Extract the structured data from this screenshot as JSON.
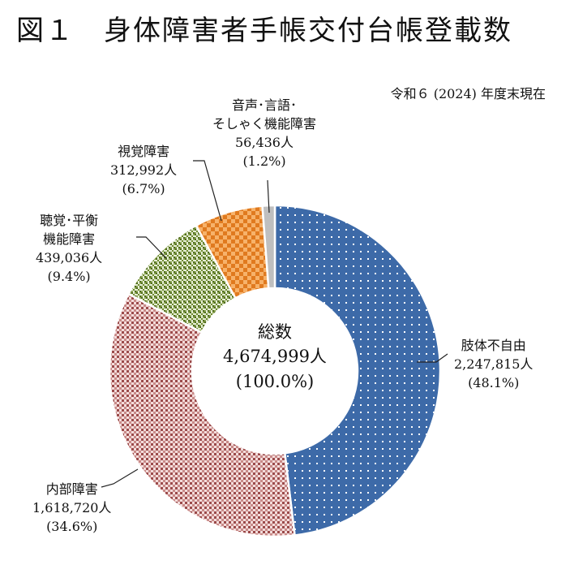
{
  "header": {
    "figure_number": "図１",
    "title": "身体障害者手帳交付台帳登載数",
    "subtitle": "令和６ (2024) 年度末現在"
  },
  "center": {
    "label": "総数",
    "total": "4,674,999人",
    "percent": "(100.0%)"
  },
  "colors": {
    "limb": "#3d6aa8",
    "internal": "#e8b9b7",
    "internal_pattern": "#8a3a3a",
    "hearing": "#6e8b2e",
    "visual": "#f08b2c",
    "speech": "#bfbfbf"
  },
  "labels": {
    "limb": {
      "name": "肢体不自由",
      "count": "2,247,815人",
      "pct": "(48.1%)"
    },
    "internal": {
      "name": "内部障害",
      "count": "1,618,720人",
      "pct": "(34.6%)"
    },
    "hearing": {
      "name1": "聴覚･平衡",
      "name2": "機能障害",
      "count": "439,036人",
      "pct": "(9.4%)"
    },
    "visual": {
      "name": "視覚障害",
      "count": "312,992人",
      "pct": "(6.7%)"
    },
    "speech": {
      "name1": "音声･言語･",
      "name2": "そしゃく機能障害",
      "count": "56,436人",
      "pct": "(1.2%)"
    }
  },
  "chart_data": {
    "type": "pie",
    "title": "身体障害者手帳交付台帳登載数",
    "subtitle": "令和６ (2024) 年度末現在",
    "donut": true,
    "total": 4674999,
    "slices": [
      {
        "name": "肢体不自由",
        "value": 2247815,
        "percent": 48.1,
        "pattern": "dots"
      },
      {
        "name": "内部障害",
        "value": 1618720,
        "percent": 34.6,
        "pattern": "crosshatch"
      },
      {
        "name": "聴覚･平衡機能障害",
        "value": 439036,
        "percent": 9.4,
        "pattern": "diagonal"
      },
      {
        "name": "視覚障害",
        "value": 312992,
        "percent": 6.7,
        "pattern": "checker"
      },
      {
        "name": "音声･言語･そしゃく機能障害",
        "value": 56436,
        "percent": 1.2,
        "pattern": "solid"
      }
    ]
  }
}
